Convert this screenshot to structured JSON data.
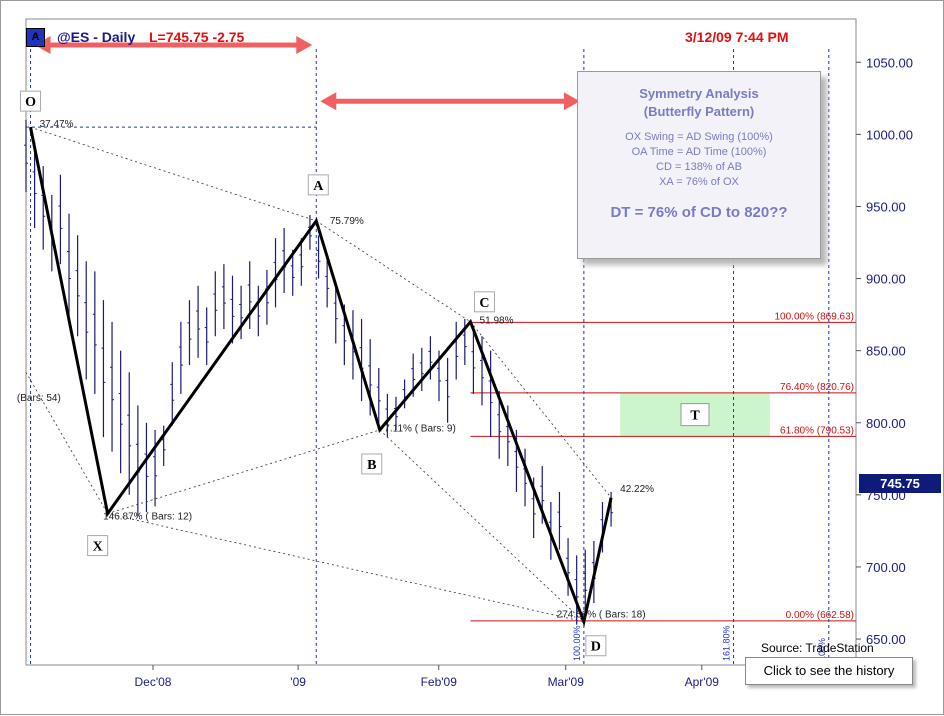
{
  "header": {
    "badge": "A",
    "symbol": "@ES - Daily",
    "last_price": "L=745.75  -2.75",
    "timestamp": "3/12/09 7:44 PM"
  },
  "symmetry_box": {
    "title": "Symmetry Analysis",
    "subtitle": "(Butterfly Pattern)",
    "lines": [
      "OX Swing = AD Swing (100%)",
      "OA Time = AD Time (100%)",
      "CD = 138% of AB",
      "XA = 76% of OX"
    ],
    "dt": "DT = 76% of CD to 820??"
  },
  "source": "Source: TradeStation",
  "history_button": "Click to see the history",
  "current_price_tag": "745.75",
  "colors": {
    "pattern": "#000000",
    "fib_lines": "#cc1111",
    "time_lines": "#2233bb",
    "target_zone": "#ccf5cc",
    "arrows": "#f06060",
    "price_tag": "#0e1b78"
  },
  "chart_data": {
    "type": "line",
    "instrument": "@ES",
    "interval": "Daily",
    "y_axis": {
      "ticks": [
        "650.00",
        "700.00",
        "750.00",
        "800.00",
        "850.00",
        "900.00",
        "950.00",
        "1000.00",
        "1050.00"
      ],
      "ylim": [
        632,
        1080
      ]
    },
    "x_axis": {
      "ticks": [
        {
          "label": "Dec'08",
          "date": "2008-12-01"
        },
        {
          "label": "'09",
          "date": "2009-01-02"
        },
        {
          "label": "Feb'09",
          "date": "2009-02-02"
        },
        {
          "label": "Mar'09",
          "date": "2009-03-02"
        },
        {
          "label": "Apr'09",
          "date": "2009-04-01"
        }
      ],
      "xlim": [
        "2008-11-03",
        "2009-05-05"
      ]
    },
    "pattern_points": [
      {
        "label": "O",
        "date": "2008-11-04",
        "price": 1005
      },
      {
        "label": "X",
        "date": "2008-11-21",
        "price": 737
      },
      {
        "label": "A",
        "date": "2009-01-06",
        "price": 940
      },
      {
        "label": "B",
        "date": "2009-01-20",
        "price": 795
      },
      {
        "label": "C",
        "date": "2009-02-09",
        "price": 870
      },
      {
        "label": "D",
        "date": "2009-03-06",
        "price": 662
      },
      {
        "label": "",
        "date": "2009-03-12",
        "price": 748
      }
    ],
    "ratio_labels": [
      {
        "text": "37.47%",
        "date": "2008-11-06",
        "price": 1005
      },
      {
        "text": "75.79%",
        "date": "2009-01-09",
        "price": 938
      },
      {
        "text": "(Bars: 54)",
        "date": "2008-11-01",
        "price": 815
      },
      {
        "text": "146.87% ( Bars: 12)",
        "date": "2008-11-20",
        "price": 733
      },
      {
        "text": "7.11%  ( Bars: 9)",
        "date": "2009-01-21",
        "price": 794
      },
      {
        "text": "51.98%",
        "date": "2009-02-11",
        "price": 869
      },
      {
        "text": "274.56% ( Bars: 18)",
        "date": "2009-02-28",
        "price": 665
      },
      {
        "text": "42.22%",
        "date": "2009-03-14",
        "price": 752
      }
    ],
    "fib_levels": [
      {
        "label": "100.00% (869.63)",
        "price": 869.63
      },
      {
        "label": "76.40% (820.76)",
        "price": 820.76
      },
      {
        "label": "61.80% (790.53)",
        "price": 790.53
      },
      {
        "label": "0.00% (662.58)",
        "price": 662.58
      }
    ],
    "target_zone": {
      "label": "T",
      "from_date": "2009-03-14",
      "to_date": "2009-04-16",
      "low": 790.53,
      "high": 820.76
    },
    "time_lines": [
      {
        "label": "",
        "date": "2008-11-04"
      },
      {
        "label": "",
        "date": "2009-01-06"
      },
      {
        "label": "100.00%",
        "date": "2009-03-06"
      },
      {
        "label": "161.80%",
        "date": "2009-04-08"
      },
      {
        "label": "100%",
        "date": "2009-04-29"
      }
    ],
    "arrows": [
      {
        "from_date": "2008-11-04",
        "to_date": "2009-01-06",
        "price": 1062
      },
      {
        "from_date": "2009-01-06",
        "to_date": "2009-03-06",
        "price": 1023
      }
    ],
    "bars_high": [
      1010,
      995,
      978,
      958,
      972,
      945,
      930,
      912,
      905,
      885,
      870,
      850,
      835,
      812,
      800,
      795,
      798,
      842,
      870,
      885,
      895,
      880,
      905,
      910,
      902,
      895,
      912,
      895,
      906,
      928,
      935,
      920,
      928,
      944,
      930,
      913,
      898,
      882,
      878,
      872,
      858,
      838,
      820,
      818,
      830,
      848,
      852,
      860,
      850,
      845,
      870,
      872,
      865,
      860,
      850,
      822,
      812,
      795,
      782,
      762,
      770,
      745,
      752,
      720,
      708,
      712,
      718,
      745,
      752
    ],
    "bars_low": [
      960,
      935,
      920,
      905,
      910,
      870,
      860,
      830,
      820,
      790,
      780,
      765,
      750,
      735,
      738,
      742,
      770,
      798,
      820,
      840,
      845,
      840,
      860,
      865,
      855,
      858,
      865,
      860,
      868,
      880,
      890,
      888,
      895,
      920,
      900,
      880,
      855,
      840,
      830,
      815,
      805,
      800,
      790,
      795,
      810,
      818,
      822,
      830,
      815,
      800,
      830,
      840,
      820,
      812,
      790,
      775,
      770,
      752,
      742,
      720,
      730,
      705,
      712,
      680,
      660,
      665,
      675,
      710,
      728
    ]
  }
}
